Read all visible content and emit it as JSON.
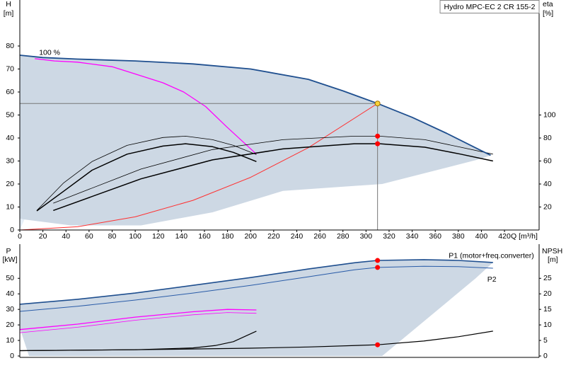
{
  "chart_data": [
    {
      "type": "line",
      "title": "Hydro MPC-EC 2 CR 155-2",
      "y_label": "H",
      "y_unit": "[m]",
      "y2_label": "eta",
      "y2_unit": "[%]",
      "x_label": "Q [m³/h]",
      "xlim": [
        0,
        450
      ],
      "ylim": [
        0,
        100
      ],
      "y2lim": [
        0,
        200
      ],
      "xticks": [
        0,
        20,
        40,
        60,
        80,
        100,
        120,
        140,
        160,
        180,
        200,
        220,
        240,
        260,
        280,
        300,
        320,
        340,
        360,
        380,
        400,
        420
      ],
      "yticks": [
        0,
        10,
        20,
        30,
        40,
        50,
        60,
        70,
        80
      ],
      "y2ticks": [
        20,
        40,
        60,
        80,
        100
      ],
      "series": [
        {
          "color": "#e6eff8",
          "fill": true,
          "x": [
            0,
            8,
            4,
            0
          ],
          "values": [
            76,
            75,
            4.6,
            0
          ]
        },
        {
          "color": "#cdd8e4",
          "fill": true,
          "x": [
            4,
            44,
            105,
            167,
            228,
            314,
            400,
            408,
            390,
            370,
            340,
            310,
            280,
            250,
            200,
            150,
            100,
            50,
            20,
            0,
            0
          ],
          "values": [
            4.6,
            2,
            2,
            7.7,
            17,
            20,
            31,
            32.5,
            37,
            42,
            49,
            55,
            60.5,
            65.5,
            70,
            72.2,
            73.5,
            74.3,
            75,
            76,
            5
          ]
        },
        {
          "name": "100 %",
          "color": "#ff00ff",
          "width": 1.3,
          "x": [
            13,
            30,
            50,
            80,
            99,
            124,
            142,
            161,
            179,
            205
          ],
          "values": [
            74.5,
            73.5,
            73,
            71,
            68,
            64,
            60,
            53.7,
            45,
            33
          ]
        },
        {
          "color": "#ff3030",
          "width": 1,
          "x": [
            0,
            50,
            100,
            150,
            200,
            250,
            310
          ],
          "values": [
            0,
            1.43,
            5.72,
            12.9,
            22.9,
            35.8,
            55
          ]
        },
        {
          "color": "#000000",
          "width": 0.8,
          "axis": "y2",
          "x": [
            14.7,
            38,
            62.6,
            93,
            124,
            143.6,
            167,
            185,
            205
          ],
          "values": [
            17,
            41,
            59.5,
            73.6,
            80.4,
            81.6,
            78.5,
            73.6,
            65.6
          ]
        },
        {
          "color": "#000000",
          "width": 1.5,
          "axis": "y2",
          "x": [
            14.7,
            38,
            62.6,
            93,
            124,
            143.6,
            167,
            185,
            205
          ],
          "values": [
            16.6,
            33.7,
            52,
            66,
            73,
            75,
            72.4,
            67.5,
            59.5
          ]
        },
        {
          "color": "#000000",
          "width": 0.8,
          "axis": "y2",
          "x": [
            29,
            105,
            167,
            228,
            290,
            312,
            351,
            382,
            410
          ],
          "values": [
            23.3,
            53,
            70,
            78.5,
            81.6,
            81.6,
            78.5,
            72,
            66
          ]
        },
        {
          "color": "#000000",
          "width": 1.5,
          "axis": "y2",
          "x": [
            29,
            105,
            167,
            228,
            290,
            312,
            351,
            382,
            410
          ],
          "values": [
            17,
            44.5,
            61,
            70.5,
            75,
            75,
            72,
            66,
            60
          ]
        },
        {
          "color": "#1f4f8f",
          "width": 1.8,
          "x": [
            0,
            20,
            50,
            100,
            150,
            200,
            250,
            280,
            310,
            340,
            370,
            390,
            408
          ],
          "values": [
            76,
            75,
            74.3,
            73.5,
            72.2,
            70,
            65.5,
            60.5,
            55,
            49,
            42,
            37,
            32.5
          ]
        }
      ],
      "points": [
        {
          "x": 310,
          "y": 81.6,
          "axis": "y2",
          "color": "#ff0000"
        },
        {
          "x": 310,
          "y": 75,
          "axis": "y2",
          "color": "#ff0000"
        },
        {
          "x": 310,
          "y": 55,
          "color": "#f8d23a",
          "crosshair": true
        }
      ]
    },
    {
      "type": "line",
      "y_label": "P",
      "y_unit": "[kW]",
      "y2_label": "NPSH",
      "y2_unit": "[m]",
      "xlim": [
        0,
        450
      ],
      "ylim": [
        0,
        72
      ],
      "y2lim": [
        0,
        36
      ],
      "yticks": [
        0,
        10,
        20,
        30,
        40,
        50
      ],
      "y2ticks": [
        0,
        5,
        10,
        15,
        20,
        25
      ],
      "series": [
        {
          "color": "#cdd8e4",
          "fill": true,
          "x": [
            8,
            314,
            395,
            410,
            380,
            350,
            310,
            290,
            250,
            200,
            150,
            100,
            50,
            0,
            0
          ],
          "values": [
            0,
            0,
            50,
            60.2,
            61.5,
            62,
            61.5,
            60,
            56,
            50.5,
            45.5,
            40.5,
            36.5,
            33.3,
            18
          ]
        },
        {
          "name": "P1 (motor+freq.converter)",
          "color": "#1f4f8f",
          "width": 1.6,
          "x": [
            0,
            50,
            100,
            150,
            200,
            250,
            290,
            310,
            350,
            380,
            410
          ],
          "values": [
            33.3,
            36.5,
            40.5,
            45.5,
            50.5,
            56,
            60,
            61.5,
            62,
            61.5,
            60.2
          ]
        },
        {
          "name": "P2",
          "color": "#2a5ca8",
          "width": 1,
          "x": [
            0,
            50,
            100,
            150,
            200,
            250,
            290,
            310,
            350,
            380,
            410
          ],
          "values": [
            28.7,
            32,
            36,
            40.5,
            45.5,
            51,
            55.5,
            57,
            57.8,
            57.5,
            56.5
          ]
        },
        {
          "color": "#ff00ff",
          "width": 1.3,
          "x": [
            0,
            50,
            100,
            150,
            180,
            205
          ],
          "values": [
            17,
            20.5,
            25,
            28.5,
            30,
            29.6
          ]
        },
        {
          "color": "#ff00ff",
          "width": 0.8,
          "x": [
            0,
            50,
            100,
            150,
            180,
            205
          ],
          "values": [
            15,
            18.5,
            23,
            26.5,
            28,
            27.5
          ]
        },
        {
          "color": "#000000",
          "width": 1.2,
          "axis": "y2",
          "x": [
            0,
            100,
            150,
            170,
            185,
            205
          ],
          "values": [
            1.7,
            2,
            2.6,
            3.4,
            4.6,
            8
          ]
        },
        {
          "color": "#000000",
          "width": 1.2,
          "axis": "y2",
          "x": [
            0,
            100,
            200,
            250,
            310,
            350,
            380,
            410
          ],
          "values": [
            1.7,
            2,
            2.5,
            2.9,
            3.6,
            4.8,
            6.2,
            8
          ]
        }
      ],
      "points": [
        {
          "x": 310,
          "y": 61.5,
          "color": "#ff0000"
        },
        {
          "x": 310,
          "y": 57,
          "color": "#ff0000"
        },
        {
          "x": 310,
          "y": 3.6,
          "axis": "y2",
          "color": "#ff0000"
        }
      ]
    }
  ]
}
